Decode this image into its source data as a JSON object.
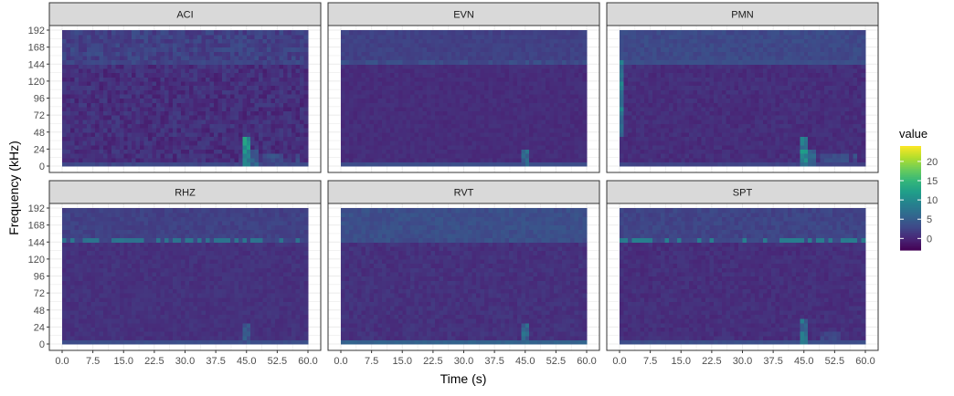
{
  "chart_data": {
    "type": "heatmap",
    "layout": "faceted 2 x 3",
    "xlabel": "Time (s)",
    "ylabel": "Frequency (kHz)",
    "x_ticks": [
      "0.0",
      "7.5",
      "15.0",
      "22.5",
      "30.0",
      "37.5",
      "45.0",
      "52.5",
      "60.0"
    ],
    "x_range": [
      0,
      60
    ],
    "y_ticks": [
      "0",
      "24",
      "48",
      "72",
      "96",
      "120",
      "144",
      "168",
      "192"
    ],
    "y_range": [
      0,
      192
    ],
    "grid": true,
    "legend": {
      "title": "value",
      "position": "right",
      "palette": "viridis",
      "ticks": [
        "0",
        "5",
        "10",
        "15",
        "20"
      ],
      "range": [
        -3,
        24
      ]
    },
    "colors": {
      "viridis": [
        "#440154",
        "#482878",
        "#3E4A89",
        "#31688E",
        "#26828E",
        "#1F9E89",
        "#35B779",
        "#6DCD59",
        "#B4DE2C",
        "#FDE725"
      ],
      "panel_border": "#333333",
      "strip_fill": "#D9D9D9",
      "grid": "#EBEBEB"
    },
    "value_model": {
      "time_bin_s": 1,
      "freq_bin_khz": 6,
      "background": 0.3,
      "note": "approximate values read from the color scale"
    },
    "facets": [
      {
        "name": "ACI",
        "base_low": 0.6,
        "base_high": 2.2,
        "noise": 1.4,
        "edge_line": 1.5,
        "bottom_line": 2,
        "hotspots": [
          {
            "t": [
              43.5,
              45.5
            ],
            "f": [
              0,
              42
            ],
            "v": 12
          },
          {
            "t": [
              46,
              48
            ],
            "f": [
              0,
              24
            ],
            "v": 6
          },
          {
            "t": [
              49,
              54
            ],
            "f": [
              6,
              18
            ],
            "v": 4
          },
          {
            "t": [
              56.5,
              57.5
            ],
            "f": [
              6,
              18
            ],
            "v": 4
          }
        ]
      },
      {
        "name": "EVN",
        "base_low": 0.4,
        "base_high": 2.2,
        "noise": 0.6,
        "edge_line": 3.5,
        "bottom_line": 3,
        "hotspots": [
          {
            "t": [
              44,
              46
            ],
            "f": [
              0,
              24
            ],
            "v": 7
          }
        ]
      },
      {
        "name": "PMN",
        "base_low": 0.5,
        "base_high": 3,
        "noise": 0.8,
        "edge_line": 3,
        "bottom_line": 2,
        "left_col": {
          "t": [
            0,
            1
          ],
          "f": [
            40,
            150
          ],
          "v": 9
        },
        "hotspots": [
          {
            "t": [
              43.5,
              45.5
            ],
            "f": [
              0,
              42
            ],
            "v": 11
          },
          {
            "t": [
              46,
              48
            ],
            "f": [
              0,
              24
            ],
            "v": 6
          },
          {
            "t": [
              49,
              56
            ],
            "f": [
              6,
              18
            ],
            "v": 3.5
          },
          {
            "t": [
              57,
              58
            ],
            "f": [
              6,
              18
            ],
            "v": 4
          }
        ]
      },
      {
        "name": "RHZ",
        "base_low": 0.8,
        "base_high": 2.2,
        "noise": 0.7,
        "edge_line": 7,
        "bottom_line": 3,
        "hotspots": [
          {
            "t": [
              44,
              46
            ],
            "f": [
              0,
              30
            ],
            "v": 5
          }
        ]
      },
      {
        "name": "RVT",
        "base_low": 0.8,
        "base_high": 3.5,
        "noise": 0.8,
        "edge_line": 2.5,
        "bottom_line": 5,
        "hotspots": [
          {
            "t": [
              43.5,
              46
            ],
            "f": [
              0,
              30
            ],
            "v": 7
          }
        ]
      },
      {
        "name": "SPT",
        "base_low": 0.6,
        "base_high": 2.5,
        "noise": 0.8,
        "edge_line": 8,
        "bottom_line": 3,
        "hotspots": [
          {
            "t": [
              43.5,
              46
            ],
            "f": [
              0,
              36
            ],
            "v": 8
          },
          {
            "t": [
              49,
              54
            ],
            "f": [
              6,
              18
            ],
            "v": 3
          }
        ]
      }
    ]
  }
}
